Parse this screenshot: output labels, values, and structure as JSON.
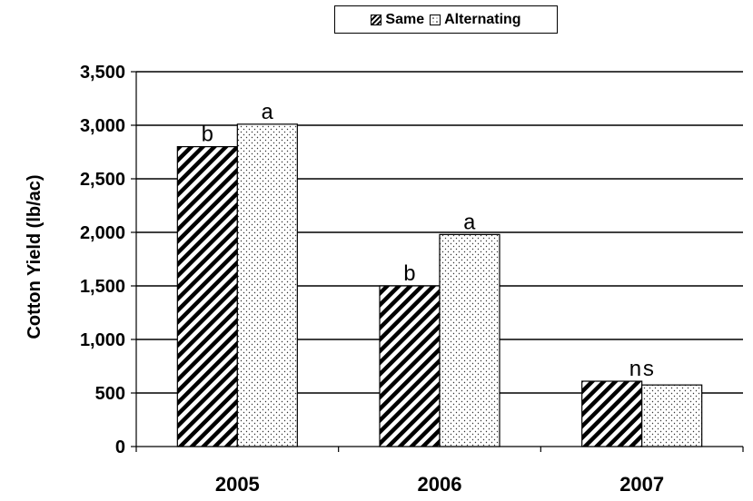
{
  "chart_data": {
    "type": "bar",
    "categories": [
      "2005",
      "2006",
      "2007"
    ],
    "series": [
      {
        "name": "Same",
        "pattern": "diagonal-hatch",
        "values": [
          2800,
          1500,
          610
        ]
      },
      {
        "name": "Alternating",
        "pattern": "dotted",
        "values": [
          3010,
          1980,
          575
        ]
      }
    ],
    "annotations": [
      {
        "category": "2005",
        "series": "Same",
        "text": "b"
      },
      {
        "category": "2005",
        "series": "Alternating",
        "text": "a"
      },
      {
        "category": "2006",
        "series": "Same",
        "text": "b"
      },
      {
        "category": "2006",
        "series": "Alternating",
        "text": "a"
      },
      {
        "category": "2007",
        "series": "both",
        "text": "ns"
      }
    ],
    "title": "",
    "xlabel": "",
    "ylabel": "Cotton Yield (lb/ac)",
    "ylim": [
      0,
      3500
    ],
    "yticks": [
      0,
      500,
      1000,
      1500,
      2000,
      2500,
      3000,
      3500
    ],
    "ytick_labels": [
      "0",
      "500",
      "1,000",
      "1,500",
      "2,000",
      "2,500",
      "3,000",
      "3,500"
    ],
    "grid": "horizontal",
    "legend": {
      "position": "top-center",
      "entries": [
        "Same",
        "Alternating"
      ]
    },
    "colors": {
      "bar_fill": "#ffffff",
      "pattern": "#000000",
      "stroke": "#000000"
    }
  }
}
